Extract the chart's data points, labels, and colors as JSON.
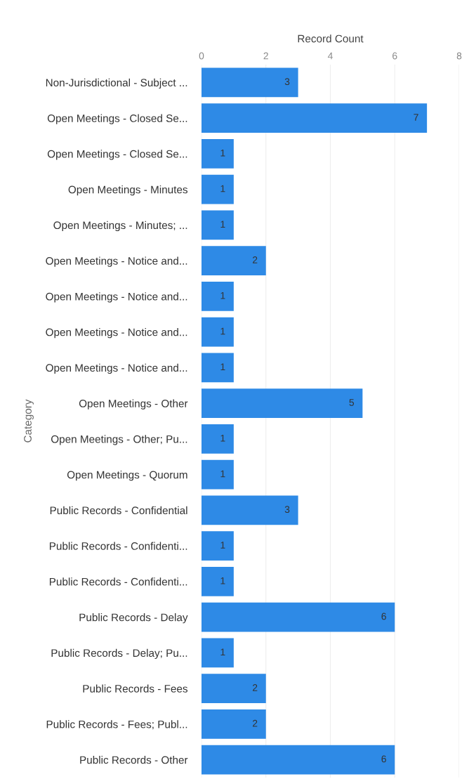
{
  "chart_data": {
    "type": "bar",
    "orientation": "horizontal",
    "xlabel": "Record Count",
    "ylabel": "Category",
    "categories": [
      "Non-Jurisdictional - Subject ...",
      "Open Meetings - Closed Se...",
      "Open Meetings - Closed Se...",
      "Open Meetings - Minutes",
      "Open Meetings - Minutes; ...",
      "Open Meetings - Notice and...",
      "Open Meetings - Notice and...",
      "Open Meetings - Notice and...",
      "Open Meetings - Notice and...",
      "Open Meetings - Other",
      "Open Meetings - Other; Pu...",
      "Open Meetings - Quorum",
      "Public Records - Confidential",
      "Public Records - Confidenti...",
      "Public Records - Confidenti...",
      "Public Records - Delay",
      "Public Records - Delay; Pu...",
      "Public Records - Fees",
      "Public Records - Fees; Publ...",
      "Public Records - Other"
    ],
    "values": [
      3,
      7,
      1,
      1,
      1,
      2,
      1,
      1,
      1,
      5,
      1,
      1,
      3,
      1,
      1,
      6,
      1,
      2,
      2,
      6
    ],
    "color": "#2e8ae6",
    "xlim": [
      0,
      8
    ],
    "xticks": [
      0,
      2,
      4,
      6,
      8
    ],
    "grid": "x",
    "data_labels": true
  }
}
